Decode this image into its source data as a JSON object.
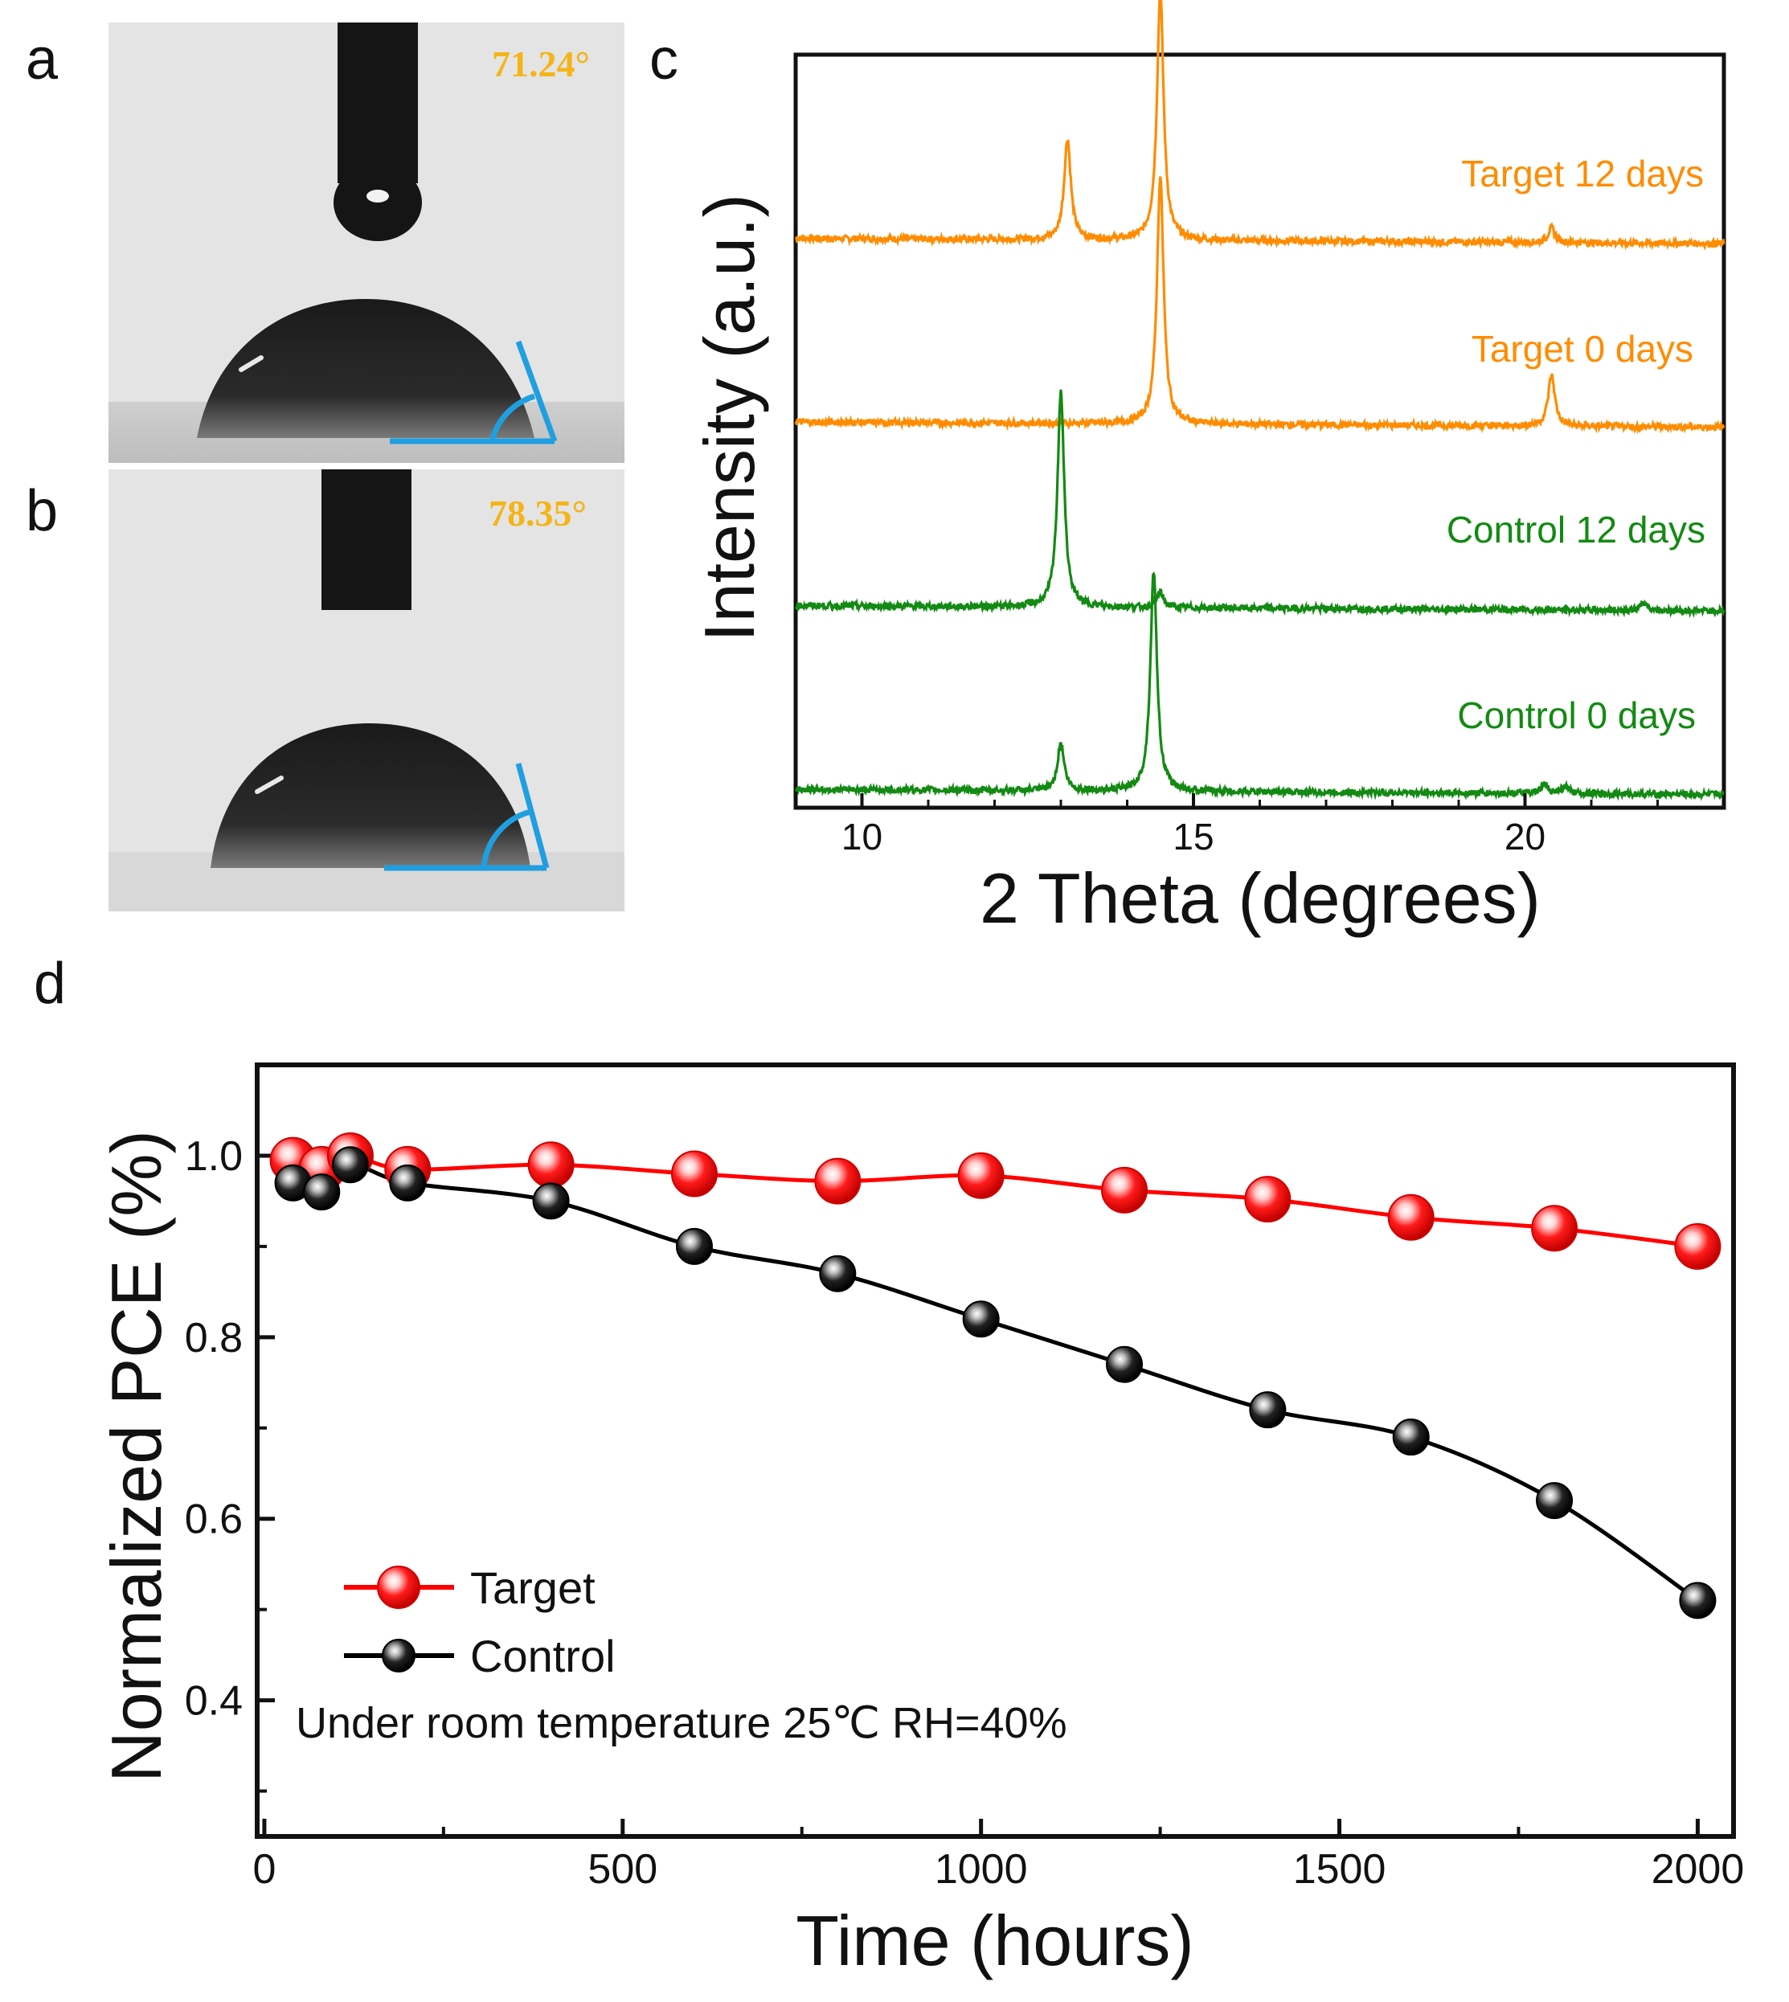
{
  "panels": {
    "a": {
      "letter": "a",
      "angle": "71.24°",
      "contact_angle_deg": 71.24
    },
    "b": {
      "letter": "b",
      "angle": "78.35°",
      "contact_angle_deg": 78.35
    },
    "c": {
      "letter": "c"
    },
    "d": {
      "letter": "d"
    }
  },
  "colors": {
    "orange": "#ff8c00",
    "green": "#138a13",
    "red": "#ff0000",
    "black": "#000000",
    "angle_text": "#f5b416",
    "angle_marker": "#1f9fe0"
  },
  "chart_data": [
    {
      "type": "line",
      "id": "xrd",
      "xlabel": "2 Theta (degrees)",
      "ylabel": "Intensity (a.u.)",
      "xlim": [
        9,
        23
      ],
      "xticks": [
        10,
        15,
        20
      ],
      "xtick_labels": [
        "10",
        "15",
        "20"
      ],
      "peak_width": 0.06,
      "series": [
        {
          "name": "Target 12 days",
          "color": "#ff8c00",
          "baseline": 3.1,
          "peaks": [
            [
              13.1,
              0.55
            ],
            [
              14.5,
              1.35
            ],
            [
              20.4,
              0.08
            ]
          ]
        },
        {
          "name": "Target 0 days",
          "color": "#ff8c00",
          "baseline": 2.1,
          "peaks": [
            [
              14.5,
              1.35
            ],
            [
              20.4,
              0.28
            ]
          ]
        },
        {
          "name": "Control 12 days",
          "color": "#138a13",
          "baseline": 1.1,
          "peaks": [
            [
              13.0,
              1.18
            ],
            [
              14.5,
              0.08
            ],
            [
              21.8,
              0.04
            ]
          ]
        },
        {
          "name": "Control 0 days",
          "color": "#138a13",
          "baseline": 0.1,
          "peaks": [
            [
              13.0,
              0.26
            ],
            [
              14.4,
              1.2
            ],
            [
              20.3,
              0.05
            ],
            [
              20.6,
              0.04
            ]
          ]
        }
      ],
      "ylim": [
        0,
        4.1
      ]
    },
    {
      "type": "line",
      "id": "stability",
      "xlabel": "Time (hours)",
      "ylabel": "Normalized PCE (%)",
      "xlim": [
        -10,
        2050
      ],
      "ylim": [
        0.25,
        1.1
      ],
      "xticks": [
        0,
        500,
        1000,
        1500,
        2000
      ],
      "xtick_labels": [
        "0",
        "500",
        "1000",
        "1500",
        "2000"
      ],
      "yticks": [
        0.4,
        0.6,
        0.8,
        1.0
      ],
      "ytick_labels": [
        "0.4",
        "0.6",
        "0.8",
        "1.0"
      ],
      "series": [
        {
          "name": "Target",
          "color": "#ff0000",
          "x": [
            40,
            80,
            120,
            200,
            400,
            600,
            800,
            1000,
            1200,
            1400,
            1600,
            1800,
            2000
          ],
          "y": [
            0.995,
            0.985,
            1.0,
            0.985,
            0.99,
            0.98,
            0.972,
            0.978,
            0.962,
            0.952,
            0.932,
            0.92,
            0.9
          ]
        },
        {
          "name": "Control",
          "color": "#000000",
          "x": [
            40,
            80,
            120,
            200,
            400,
            600,
            800,
            1000,
            1200,
            1400,
            1600,
            1800,
            2000
          ],
          "y": [
            0.97,
            0.96,
            0.99,
            0.97,
            0.95,
            0.9,
            0.87,
            0.82,
            0.77,
            0.72,
            0.69,
            0.62,
            0.51
          ]
        }
      ],
      "legend": [
        "Target",
        "Control"
      ],
      "annotation": "Under room temperature 25℃ RH=40%"
    }
  ]
}
